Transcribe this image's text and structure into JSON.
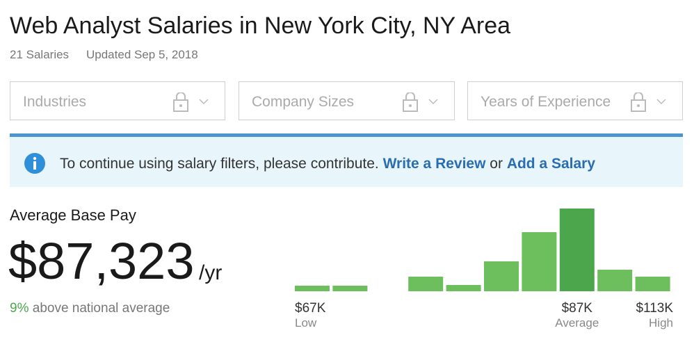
{
  "header": {
    "title": "Web Analyst Salaries in New York City, NY Area",
    "salary_count": "21 Salaries",
    "updated": "Updated Sep 5, 2018"
  },
  "filters": [
    "Industries",
    "Company Sizes",
    "Years of Experience"
  ],
  "banner": {
    "text": "To continue using salary filters, please contribute.",
    "link1": "Write a Review",
    "or": "or",
    "link2": "Add a Salary"
  },
  "pay": {
    "label": "Average Base Pay",
    "amount": "$87,323",
    "unit": "/yr",
    "percent": "9%",
    "comparison": "above national average"
  },
  "histogram": {
    "values": [
      8,
      8,
      0,
      21,
      9,
      43,
      85,
      119,
      31,
      21
    ],
    "highlight": 7,
    "color": "#6cbf5c",
    "highlight_color": "#4ca64c",
    "labels": [
      {
        "text": "$67K",
        "caption": "Low"
      },
      {
        "text": "$87K",
        "caption": "Average"
      },
      {
        "text": "$113K",
        "caption": "High"
      }
    ]
  }
}
